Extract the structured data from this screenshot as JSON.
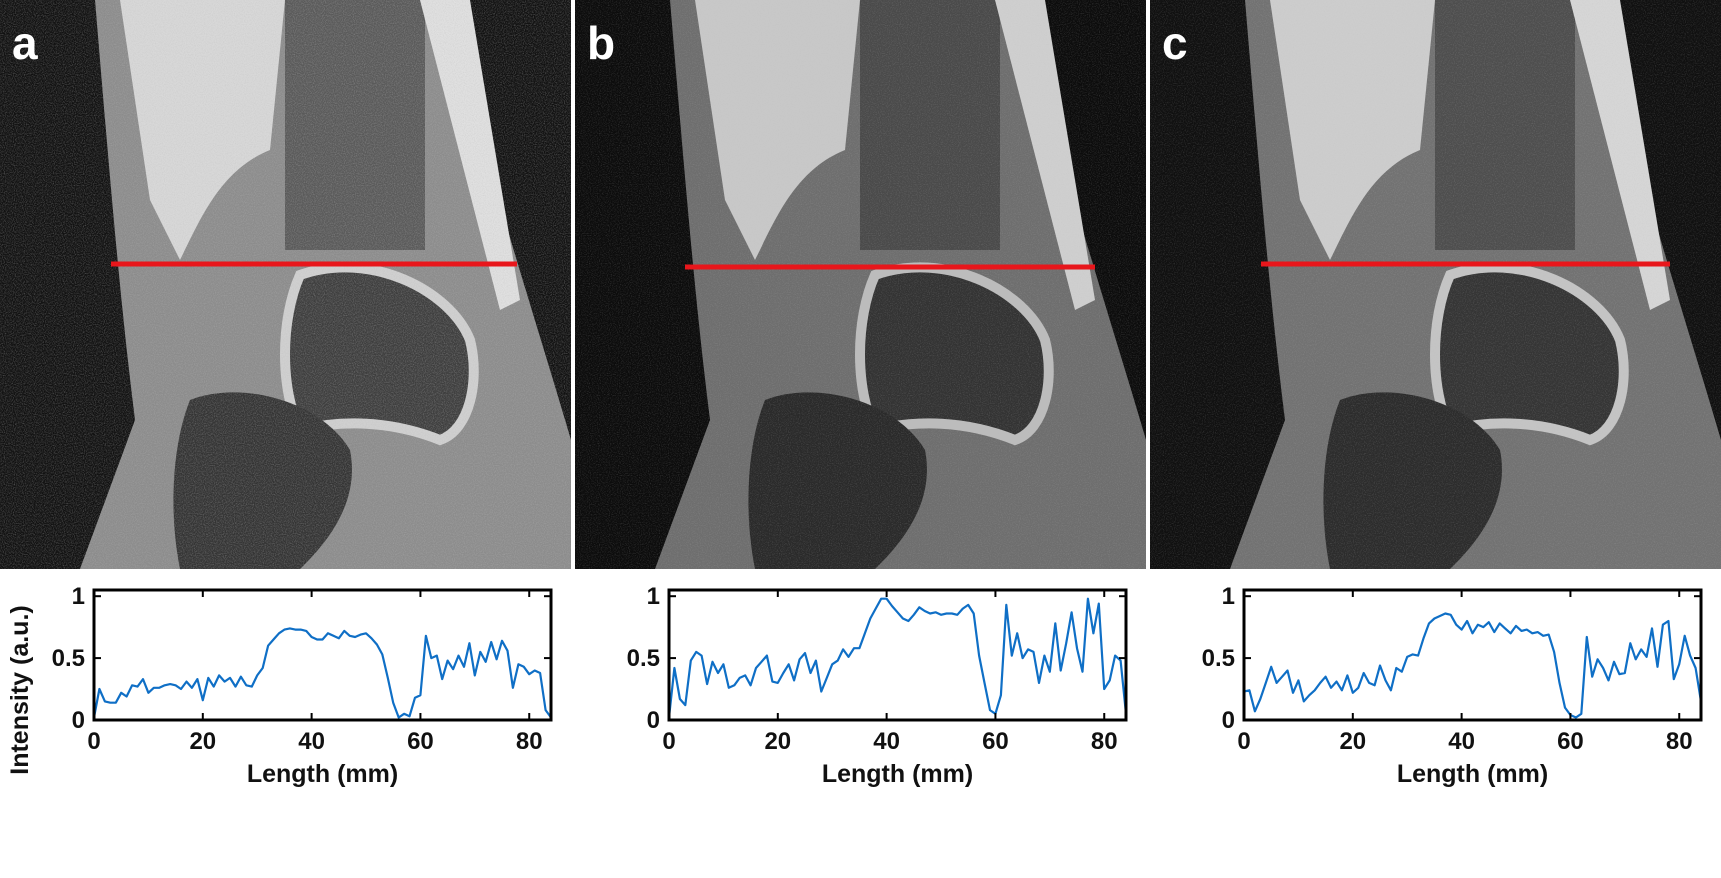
{
  "panels": [
    {
      "letter": "a",
      "profile_line": {
        "color": "#e8161b"
      },
      "chart_data": {
        "type": "line",
        "title": "",
        "xlabel": "Length (mm)",
        "ylabel": "Intensity (a.u.)",
        "xlim": [
          0,
          84
        ],
        "ylim": [
          0,
          1.05
        ],
        "xticks": [
          0,
          20,
          40,
          60,
          80
        ],
        "yticks": [
          0,
          0.5,
          1
        ],
        "ytick_labels": [
          "0",
          "0.5",
          "1"
        ],
        "grid": false,
        "series": [
          {
            "color": "#0f6fc6",
            "x": [
              0,
              1,
              2,
              3,
              4,
              5,
              6,
              7,
              8,
              9,
              10,
              11,
              12,
              13,
              14,
              15,
              16,
              17,
              18,
              19,
              20,
              21,
              22,
              23,
              24,
              25,
              26,
              27,
              28,
              29,
              30,
              31,
              32,
              33,
              34,
              35,
              36,
              37,
              38,
              39,
              40,
              41,
              42,
              43,
              44,
              45,
              46,
              47,
              48,
              49,
              50,
              51,
              52,
              53,
              54,
              55,
              56,
              57,
              58,
              59,
              60,
              61,
              62,
              63,
              64,
              65,
              66,
              67,
              68,
              69,
              70,
              71,
              72,
              73,
              74,
              75,
              76,
              77,
              78,
              79,
              80,
              81,
              82,
              83,
              84
            ],
            "y": [
              0.02,
              0.25,
              0.15,
              0.14,
              0.14,
              0.22,
              0.19,
              0.28,
              0.27,
              0.33,
              0.22,
              0.26,
              0.26,
              0.28,
              0.29,
              0.28,
              0.25,
              0.31,
              0.26,
              0.33,
              0.16,
              0.34,
              0.27,
              0.36,
              0.31,
              0.34,
              0.27,
              0.35,
              0.28,
              0.27,
              0.36,
              0.42,
              0.6,
              0.65,
              0.7,
              0.73,
              0.74,
              0.73,
              0.73,
              0.72,
              0.67,
              0.65,
              0.65,
              0.7,
              0.68,
              0.66,
              0.72,
              0.68,
              0.67,
              0.69,
              0.7,
              0.66,
              0.61,
              0.53,
              0.34,
              0.14,
              0.02,
              0.05,
              0.03,
              0.18,
              0.2,
              0.68,
              0.5,
              0.52,
              0.33,
              0.48,
              0.41,
              0.52,
              0.43,
              0.62,
              0.36,
              0.55,
              0.47,
              0.63,
              0.49,
              0.64,
              0.56,
              0.26,
              0.45,
              0.43,
              0.37,
              0.4,
              0.38,
              0.08,
              0.02
            ]
          }
        ]
      }
    },
    {
      "letter": "b",
      "profile_line": {
        "color": "#e8161b"
      },
      "chart_data": {
        "type": "line",
        "title": "",
        "xlabel": "Length (mm)",
        "ylabel": "",
        "xlim": [
          0,
          84
        ],
        "ylim": [
          0,
          1.05
        ],
        "xticks": [
          0,
          20,
          40,
          60,
          80
        ],
        "yticks": [
          0,
          0.5,
          1
        ],
        "ytick_labels": [
          "0",
          "0.5",
          "1"
        ],
        "grid": false,
        "series": [
          {
            "color": "#0f6fc6",
            "x": [
              0,
              1,
              2,
              3,
              4,
              5,
              6,
              7,
              8,
              9,
              10,
              11,
              12,
              13,
              14,
              15,
              16,
              17,
              18,
              19,
              20,
              21,
              22,
              23,
              24,
              25,
              26,
              27,
              28,
              29,
              30,
              31,
              32,
              33,
              34,
              35,
              36,
              37,
              38,
              39,
              40,
              41,
              42,
              43,
              44,
              45,
              46,
              47,
              48,
              49,
              50,
              51,
              52,
              53,
              54,
              55,
              56,
              57,
              58,
              59,
              60,
              61,
              62,
              63,
              64,
              65,
              66,
              67,
              68,
              69,
              70,
              71,
              72,
              73,
              74,
              75,
              76,
              77,
              78,
              79,
              80,
              81,
              82,
              83,
              84
            ],
            "y": [
              0.02,
              0.42,
              0.17,
              0.12,
              0.48,
              0.55,
              0.52,
              0.29,
              0.47,
              0.38,
              0.45,
              0.26,
              0.28,
              0.34,
              0.36,
              0.28,
              0.42,
              0.47,
              0.52,
              0.31,
              0.3,
              0.38,
              0.45,
              0.32,
              0.49,
              0.54,
              0.38,
              0.48,
              0.23,
              0.34,
              0.45,
              0.48,
              0.57,
              0.51,
              0.58,
              0.58,
              0.7,
              0.82,
              0.9,
              0.98,
              0.98,
              0.92,
              0.87,
              0.82,
              0.8,
              0.85,
              0.91,
              0.88,
              0.86,
              0.87,
              0.85,
              0.86,
              0.86,
              0.85,
              0.9,
              0.93,
              0.86,
              0.52,
              0.3,
              0.08,
              0.05,
              0.2,
              0.93,
              0.52,
              0.7,
              0.5,
              0.57,
              0.55,
              0.3,
              0.52,
              0.39,
              0.78,
              0.4,
              0.62,
              0.87,
              0.58,
              0.39,
              0.98,
              0.7,
              0.94,
              0.25,
              0.32,
              0.52,
              0.48,
              0.05
            ]
          }
        ]
      }
    },
    {
      "letter": "c",
      "profile_line": {
        "color": "#e8161b"
      },
      "chart_data": {
        "type": "line",
        "title": "",
        "xlabel": "Length (mm)",
        "ylabel": "",
        "xlim": [
          0,
          84
        ],
        "ylim": [
          0,
          1.05
        ],
        "xticks": [
          0,
          20,
          40,
          60,
          80
        ],
        "yticks": [
          0,
          0.5,
          1
        ],
        "ytick_labels": [
          "0",
          "0.5",
          "1"
        ],
        "grid": false,
        "series": [
          {
            "color": "#0f6fc6",
            "x": [
              0,
              1,
              2,
              3,
              4,
              5,
              6,
              7,
              8,
              9,
              10,
              11,
              12,
              13,
              14,
              15,
              16,
              17,
              18,
              19,
              20,
              21,
              22,
              23,
              24,
              25,
              26,
              27,
              28,
              29,
              30,
              31,
              32,
              33,
              34,
              35,
              36,
              37,
              38,
              39,
              40,
              41,
              42,
              43,
              44,
              45,
              46,
              47,
              48,
              49,
              50,
              51,
              52,
              53,
              54,
              55,
              56,
              57,
              58,
              59,
              60,
              61,
              62,
              63,
              64,
              65,
              66,
              67,
              68,
              69,
              70,
              71,
              72,
              73,
              74,
              75,
              76,
              77,
              78,
              79,
              80,
              81,
              82,
              83,
              84
            ],
            "y": [
              0.23,
              0.24,
              0.07,
              0.17,
              0.3,
              0.43,
              0.3,
              0.35,
              0.4,
              0.22,
              0.32,
              0.15,
              0.2,
              0.24,
              0.3,
              0.35,
              0.26,
              0.31,
              0.24,
              0.36,
              0.22,
              0.26,
              0.38,
              0.3,
              0.28,
              0.44,
              0.32,
              0.24,
              0.42,
              0.39,
              0.51,
              0.53,
              0.52,
              0.66,
              0.78,
              0.82,
              0.84,
              0.86,
              0.85,
              0.77,
              0.73,
              0.8,
              0.7,
              0.77,
              0.75,
              0.79,
              0.71,
              0.78,
              0.74,
              0.7,
              0.76,
              0.72,
              0.73,
              0.7,
              0.71,
              0.68,
              0.69,
              0.55,
              0.3,
              0.1,
              0.04,
              0.02,
              0.05,
              0.67,
              0.35,
              0.49,
              0.42,
              0.32,
              0.47,
              0.37,
              0.38,
              0.62,
              0.49,
              0.57,
              0.51,
              0.74,
              0.43,
              0.77,
              0.8,
              0.33,
              0.45,
              0.68,
              0.52,
              0.42,
              0.15
            ]
          }
        ]
      }
    }
  ]
}
